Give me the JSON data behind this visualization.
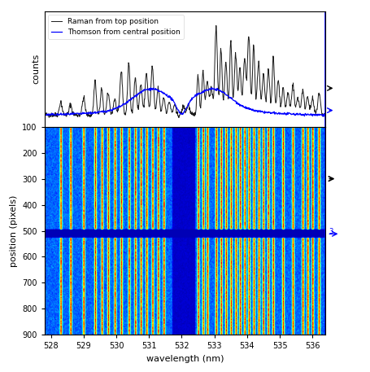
{
  "wavelength_min": 527.8,
  "wavelength_max": 536.4,
  "x_ticks": [
    528,
    529,
    530,
    531,
    532,
    533,
    534,
    535,
    536
  ],
  "xlabel": "wavelength (nm)",
  "ylabel_top": "counts",
  "ylabel_bottom": "position (pixels)",
  "yticks_bottom": [
    100,
    200,
    300,
    400,
    500,
    600,
    700,
    800,
    900
  ],
  "legend_entries": [
    "Raman from top position",
    "Thomson from central position"
  ],
  "line_color_raman": "#1a1a1a",
  "line_color_thomson": "#0000ff",
  "blue_border_color": "#0000ff",
  "image_ymin": 100,
  "image_ymax": 900,
  "arrow_color_black": "#000000",
  "arrow_color_blue": "#0000ff",
  "background_color": "#ffffff",
  "figsize": [
    4.55,
    4.57
  ],
  "dpi": 100
}
